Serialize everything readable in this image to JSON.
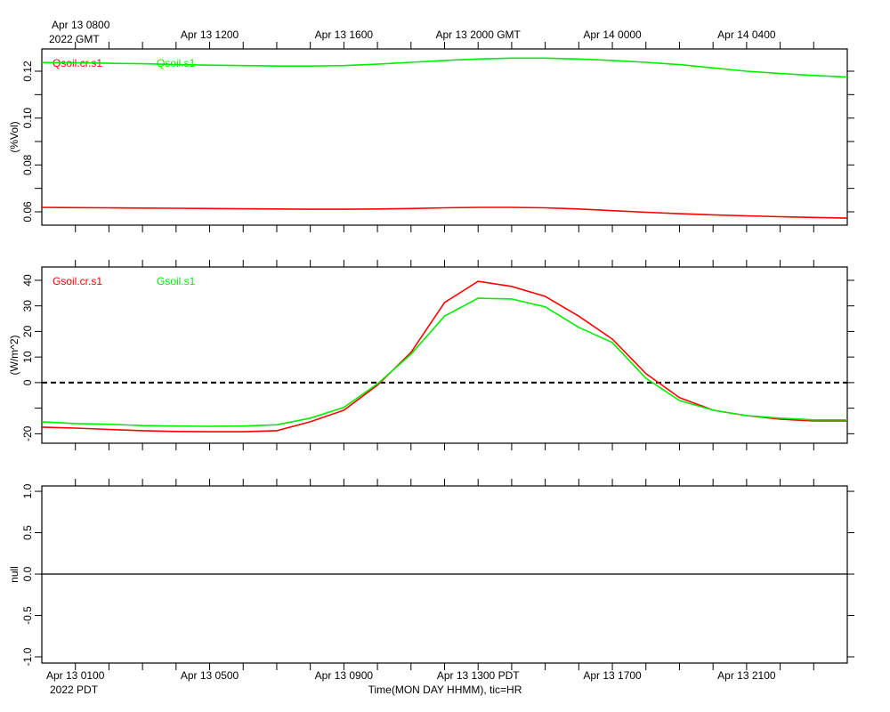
{
  "chart_data": [
    {
      "type": "line",
      "ylabel": "(%Vol)",
      "xlim": [
        0,
        24
      ],
      "ylim": [
        0.0543,
        0.1295
      ],
      "yticks": [
        0.06,
        0.08,
        {
          "value": 0.1,
          "label": "0.10"
        },
        0.12
      ],
      "yminorticks": [
        0.07,
        0.09,
        0.11
      ],
      "xtick_marks": [
        1,
        2,
        3,
        4,
        5,
        6,
        7,
        8,
        9,
        10,
        11,
        12,
        13,
        14,
        15,
        16,
        17,
        18,
        19,
        20,
        21,
        22,
        23
      ],
      "x2ticks": [
        {
          "value": 1,
          "label": "Apr 13 0800"
        },
        {
          "value": 5,
          "label": "Apr 13 1200"
        },
        {
          "value": 9,
          "label": "Apr 13 1600"
        },
        {
          "value": 13,
          "label": "Apr 13 2000 GMT"
        },
        {
          "value": 17,
          "label": "Apr 14 0000"
        },
        {
          "value": 21,
          "label": "Apr 14 0400"
        }
      ],
      "x2_year": "2022 GMT",
      "x": [
        0,
        1,
        2,
        3,
        4,
        5,
        6,
        7,
        8,
        9,
        10,
        11,
        12,
        13,
        14,
        15,
        16,
        17,
        18,
        19,
        20,
        21,
        22,
        23,
        24
      ],
      "series": [
        {
          "name": "Qsoil.cr.s1",
          "color": "#ff0000",
          "values": [
            0.0619,
            0.0618,
            0.0617,
            0.0616,
            0.0615,
            0.0614,
            0.0613,
            0.0612,
            0.0611,
            0.0611,
            0.0612,
            0.0614,
            0.0617,
            0.0619,
            0.0619,
            0.0617,
            0.0612,
            0.0605,
            0.0598,
            0.0592,
            0.0587,
            0.0583,
            0.0579,
            0.0576,
            0.0573
          ]
        },
        {
          "name": "Qsoil.s1",
          "color": "#00ee00",
          "values": [
            0.1237,
            0.1236,
            0.1234,
            0.1232,
            0.1228,
            0.1226,
            0.1224,
            0.1222,
            0.1222,
            0.1224,
            0.123,
            0.1238,
            0.1246,
            0.1252,
            0.1256,
            0.1256,
            0.1252,
            0.1246,
            0.1238,
            0.1228,
            0.1214,
            0.12,
            0.119,
            0.1182,
            0.1175
          ]
        }
      ]
    },
    {
      "type": "line",
      "ylabel": "(W/m^2)",
      "xlim": [
        0,
        24
      ],
      "ylim": [
        -23.7,
        45.2
      ],
      "yticks": [
        -20,
        0,
        10,
        20,
        30,
        40
      ],
      "yminorticks": [
        -10
      ],
      "zero_line": "dashed",
      "xtick_marks": [
        1,
        2,
        3,
        4,
        5,
        6,
        7,
        8,
        9,
        10,
        11,
        12,
        13,
        14,
        15,
        16,
        17,
        18,
        19,
        20,
        21,
        22,
        23
      ],
      "x": [
        0,
        1,
        2,
        3,
        4,
        5,
        6,
        7,
        8,
        9,
        10,
        11,
        12,
        13,
        14,
        15,
        16,
        17,
        18,
        19,
        20,
        21,
        22,
        23,
        24
      ],
      "series": [
        {
          "name": "Gsoil.cr.s1",
          "color": "#ff0000",
          "values": [
            -17.4,
            -17.8,
            -18.3,
            -18.8,
            -19.1,
            -19.2,
            -19.2,
            -18.8,
            -15.3,
            -10.8,
            -1,
            11.8,
            31.3,
            39.6,
            37.6,
            33.7,
            26,
            17,
            3.5,
            -5.9,
            -10.8,
            -12.9,
            -14.3,
            -15,
            -15
          ]
        },
        {
          "name": "Gsoil.s1",
          "color": "#00ee00",
          "values": [
            -15.3,
            -16,
            -16.3,
            -16.8,
            -17,
            -17.1,
            -17,
            -16.5,
            -13.9,
            -9.7,
            -0.5,
            11.1,
            26,
            33,
            32.7,
            29.6,
            21.6,
            15.7,
            1.7,
            -7,
            -10.8,
            -12.9,
            -13.9,
            -14.6,
            -14.6
          ]
        }
      ]
    },
    {
      "type": "line",
      "ylabel": "null",
      "xlim": [
        0,
        24
      ],
      "ylim": [
        -1.075,
        1.065
      ],
      "yticks": [
        {
          "value": -1,
          "label": "-1.0"
        },
        -0.5,
        {
          "value": 0,
          "label": "0.0"
        },
        0.5,
        {
          "value": 1,
          "label": "1.0"
        }
      ],
      "zero_line": "solid",
      "xtick_marks": [
        1,
        2,
        3,
        4,
        5,
        6,
        7,
        8,
        9,
        10,
        11,
        12,
        13,
        14,
        15,
        16,
        17,
        18,
        19,
        20,
        21,
        22,
        23
      ],
      "xticks": [
        {
          "value": 1,
          "label": "Apr 13 0100"
        },
        {
          "value": 5,
          "label": "Apr 13 0500"
        },
        {
          "value": 9,
          "label": "Apr 13 0900"
        },
        {
          "value": 13,
          "label": "Apr 13 1300 PDT"
        },
        {
          "value": 17,
          "label": "Apr 13 1700"
        },
        {
          "value": 21,
          "label": "Apr 13 2100"
        }
      ],
      "x_year": "2022 PDT",
      "xlabel": "Time(MON DAY HHMM), tic=HR",
      "series": []
    }
  ]
}
